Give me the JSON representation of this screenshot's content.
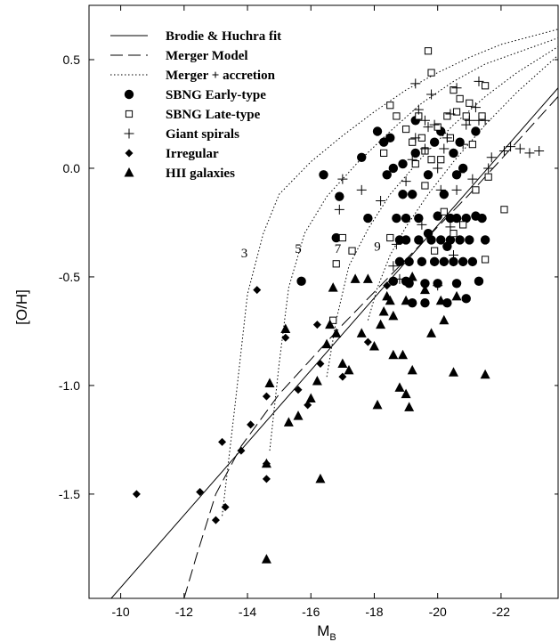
{
  "chart_data": {
    "type": "scatter",
    "xlabel": "M",
    "xlabel_sub": "B",
    "ylabel": "[O/H]",
    "xlim": [
      -9,
      -23.8
    ],
    "ylim": [
      -1.98,
      0.75
    ],
    "x_reversed": true,
    "xticks": [
      -10,
      -12,
      -14,
      -16,
      -18,
      -20,
      -22
    ],
    "yticks": [
      0.5,
      0.0,
      -0.5,
      -1.0,
      -1.5
    ],
    "xtick_labels": [
      "-10",
      "-12",
      "-14",
      "-16",
      "-18",
      "-20",
      "-22"
    ],
    "ytick_labels": [
      "0.5",
      "0.0",
      "-0.5",
      "-1.0",
      "-1.5"
    ],
    "legend_position": "top-left",
    "legend": [
      {
        "label": "Brodie & Huchra fit",
        "style": "solid-line"
      },
      {
        "label": "Merger Model",
        "style": "dashed-line"
      },
      {
        "label": "Merger + accretion",
        "style": "dotted-line"
      },
      {
        "label": "SBNG Early-type",
        "style": "filled-circle"
      },
      {
        "label": "SBNG Late-type",
        "style": "open-square"
      },
      {
        "label": "Giant spirals",
        "style": "plus"
      },
      {
        "label": "Irregular",
        "style": "filled-diamond"
      },
      {
        "label": "HII galaxies",
        "style": "filled-triangle"
      }
    ],
    "curve_labels": [
      {
        "text": "3",
        "x": -13.9,
        "y": -0.41
      },
      {
        "text": "5",
        "x": -15.6,
        "y": -0.39
      },
      {
        "text": "7",
        "x": -16.85,
        "y": -0.39
      },
      {
        "text": "9",
        "x": -18.1,
        "y": -0.38
      }
    ],
    "lines": [
      {
        "name": "Brodie & Huchra fit",
        "style": "solid",
        "points": [
          [
            -9.7,
            -1.98
          ],
          [
            -23.8,
            0.37
          ]
        ]
      },
      {
        "name": "Merger Model",
        "style": "dashed",
        "points": [
          [
            -12.0,
            -1.98
          ],
          [
            -12.4,
            -1.78
          ],
          [
            -13.0,
            -1.5
          ],
          [
            -13.8,
            -1.28
          ],
          [
            -15.0,
            -1.04
          ],
          [
            -17.0,
            -0.72
          ],
          [
            -19.0,
            -0.42
          ],
          [
            -21.0,
            -0.12
          ],
          [
            -23.8,
            0.33
          ]
        ]
      },
      {
        "name": "Merger + accretion 3",
        "style": "dotted",
        "points": [
          [
            -13.2,
            -1.6
          ],
          [
            -13.6,
            -1.1
          ],
          [
            -14.0,
            -0.58
          ],
          [
            -14.5,
            -0.3
          ],
          [
            -15.0,
            -0.12
          ],
          [
            -16.0,
            0.03
          ],
          [
            -17.0,
            0.15
          ],
          [
            -18.0,
            0.26
          ],
          [
            -19.0,
            0.36
          ],
          [
            -20.0,
            0.44
          ],
          [
            -21.0,
            0.51
          ],
          [
            -22.0,
            0.57
          ],
          [
            -23.8,
            0.64
          ]
        ]
      },
      {
        "name": "Merger + accretion 5",
        "style": "dotted",
        "points": [
          [
            -14.7,
            -1.3
          ],
          [
            -15.0,
            -0.9
          ],
          [
            -15.3,
            -0.55
          ],
          [
            -15.8,
            -0.3
          ],
          [
            -16.5,
            -0.13
          ],
          [
            -17.5,
            0.03
          ],
          [
            -18.5,
            0.17
          ],
          [
            -19.5,
            0.3
          ],
          [
            -20.5,
            0.4
          ],
          [
            -21.5,
            0.48
          ],
          [
            -23.8,
            0.6
          ]
        ]
      },
      {
        "name": "Merger + accretion 7",
        "style": "dotted",
        "points": [
          [
            -16.5,
            -0.96
          ],
          [
            -16.8,
            -0.7
          ],
          [
            -17.2,
            -0.45
          ],
          [
            -17.8,
            -0.28
          ],
          [
            -18.5,
            -0.12
          ],
          [
            -19.5,
            0.05
          ],
          [
            -20.5,
            0.2
          ],
          [
            -21.5,
            0.33
          ],
          [
            -22.5,
            0.44
          ],
          [
            -23.8,
            0.56
          ]
        ]
      },
      {
        "name": "Merger + accretion 9",
        "style": "dotted",
        "points": [
          [
            -17.8,
            -0.7
          ],
          [
            -18.1,
            -0.55
          ],
          [
            -18.5,
            -0.4
          ],
          [
            -19.0,
            -0.27
          ],
          [
            -19.7,
            -0.12
          ],
          [
            -20.5,
            0.03
          ],
          [
            -21.5,
            0.2
          ],
          [
            -22.5,
            0.35
          ],
          [
            -23.8,
            0.52
          ]
        ]
      }
    ],
    "series": [
      {
        "name": "SBNG Early-type",
        "marker": "filled-circle",
        "points": [
          [
            -15.7,
            -0.52
          ],
          [
            -16.4,
            -0.03
          ],
          [
            -16.8,
            -0.32
          ],
          [
            -16.9,
            -0.13
          ],
          [
            -17.6,
            0.05
          ],
          [
            -17.8,
            -0.23
          ],
          [
            -18.1,
            0.17
          ],
          [
            -18.3,
            0.12
          ],
          [
            -18.4,
            -0.03
          ],
          [
            -18.5,
            0.14
          ],
          [
            -18.6,
            0.0
          ],
          [
            -18.7,
            -0.23
          ],
          [
            -18.8,
            -0.33
          ],
          [
            -18.8,
            -0.43
          ],
          [
            -18.9,
            -0.12
          ],
          [
            -19.0,
            -0.23
          ],
          [
            -19.0,
            -0.33
          ],
          [
            -19.1,
            -0.43
          ],
          [
            -19.1,
            -0.53
          ],
          [
            -19.2,
            -0.12
          ],
          [
            -19.2,
            -0.62
          ],
          [
            -19.3,
            0.07
          ],
          [
            -19.4,
            -0.23
          ],
          [
            -19.4,
            -0.33
          ],
          [
            -19.5,
            -0.43
          ],
          [
            -19.6,
            -0.53
          ],
          [
            -19.6,
            -0.62
          ],
          [
            -19.7,
            -0.03
          ],
          [
            -19.8,
            -0.33
          ],
          [
            -19.9,
            -0.43
          ],
          [
            -19.9,
            0.12
          ],
          [
            -20.0,
            -0.22
          ],
          [
            -20.0,
            -0.53
          ],
          [
            -20.1,
            0.17
          ],
          [
            -20.1,
            -0.33
          ],
          [
            -20.2,
            -0.43
          ],
          [
            -20.2,
            -0.12
          ],
          [
            -20.3,
            -0.62
          ],
          [
            -20.4,
            -0.23
          ],
          [
            -20.4,
            -0.33
          ],
          [
            -20.5,
            0.07
          ],
          [
            -20.5,
            -0.43
          ],
          [
            -20.6,
            -0.03
          ],
          [
            -20.6,
            -0.23
          ],
          [
            -20.7,
            0.12
          ],
          [
            -20.7,
            -0.33
          ],
          [
            -20.8,
            -0.43
          ],
          [
            -20.9,
            -0.6
          ],
          [
            -20.9,
            -0.23
          ],
          [
            -21.0,
            -0.33
          ],
          [
            -21.1,
            -0.43
          ],
          [
            -21.2,
            -0.22
          ],
          [
            -21.2,
            0.17
          ],
          [
            -21.3,
            -0.52
          ],
          [
            -21.4,
            -0.23
          ],
          [
            -21.5,
            -0.33
          ],
          [
            -19.3,
            0.22
          ],
          [
            -18.9,
            0.02
          ],
          [
            -20.8,
            0.0
          ],
          [
            -19.7,
            -0.3
          ],
          [
            -20.6,
            -0.53
          ],
          [
            -19.0,
            -0.52
          ],
          [
            -18.6,
            -0.52
          ],
          [
            -20.3,
            -0.36
          ]
        ]
      },
      {
        "name": "SBNG Late-type",
        "marker": "open-square",
        "points": [
          [
            -16.7,
            -0.7
          ],
          [
            -16.8,
            -0.44
          ],
          [
            -17.0,
            -0.32
          ],
          [
            -17.3,
            -0.38
          ],
          [
            -18.3,
            0.07
          ],
          [
            -18.5,
            -0.32
          ],
          [
            -18.5,
            0.29
          ],
          [
            -18.7,
            0.24
          ],
          [
            -19.0,
            0.18
          ],
          [
            -19.2,
            0.12
          ],
          [
            -19.3,
            0.02
          ],
          [
            -19.4,
            0.24
          ],
          [
            -19.5,
            0.14
          ],
          [
            -19.6,
            -0.08
          ],
          [
            -19.7,
            0.54
          ],
          [
            -19.8,
            0.44
          ],
          [
            -19.8,
            0.04
          ],
          [
            -20.0,
            0.19
          ],
          [
            -20.1,
            0.04
          ],
          [
            -20.2,
            -0.2
          ],
          [
            -20.3,
            0.24
          ],
          [
            -20.4,
            0.14
          ],
          [
            -20.5,
            0.36
          ],
          [
            -20.5,
            -0.3
          ],
          [
            -20.6,
            0.26
          ],
          [
            -20.7,
            0.32
          ],
          [
            -20.8,
            -0.26
          ],
          [
            -20.9,
            0.24
          ],
          [
            -21.0,
            0.3
          ],
          [
            -21.1,
            0.11
          ],
          [
            -21.2,
            -0.1
          ],
          [
            -21.4,
            0.24
          ],
          [
            -21.5,
            0.38
          ],
          [
            -21.6,
            -0.04
          ],
          [
            -21.5,
            -0.42
          ],
          [
            -22.1,
            -0.19
          ],
          [
            -19.9,
            -0.38
          ],
          [
            -19.6,
            0.08
          ]
        ]
      },
      {
        "name": "Giant spirals",
        "marker": "plus",
        "points": [
          [
            -16.9,
            -0.19
          ],
          [
            -17.0,
            -0.05
          ],
          [
            -17.6,
            -0.1
          ],
          [
            -18.2,
            -0.15
          ],
          [
            -18.6,
            -0.45
          ],
          [
            -18.7,
            -0.35
          ],
          [
            -18.8,
            -0.51
          ],
          [
            -19.0,
            -0.06
          ],
          [
            -19.2,
            0.04
          ],
          [
            -19.3,
            0.14
          ],
          [
            -19.4,
            0.27
          ],
          [
            -19.5,
            -0.26
          ],
          [
            -19.6,
            0.09
          ],
          [
            -19.7,
            0.19
          ],
          [
            -19.8,
            0.34
          ],
          [
            -19.9,
            0.2
          ],
          [
            -20.0,
            0.0
          ],
          [
            -20.1,
            -0.1
          ],
          [
            -20.2,
            0.09
          ],
          [
            -20.3,
            0.14
          ],
          [
            -20.4,
            0.25
          ],
          [
            -20.4,
            -0.27
          ],
          [
            -20.5,
            -0.4
          ],
          [
            -20.6,
            -0.1
          ],
          [
            -20.7,
            -0.02
          ],
          [
            -20.8,
            0.11
          ],
          [
            -20.9,
            0.2
          ],
          [
            -21.0,
            0.22
          ],
          [
            -21.1,
            -0.05
          ],
          [
            -21.2,
            0.28
          ],
          [
            -21.3,
            0.22
          ],
          [
            -21.5,
            0.22
          ],
          [
            -21.6,
            0.0
          ],
          [
            -21.7,
            0.05
          ],
          [
            -22.1,
            0.08
          ],
          [
            -22.3,
            0.1
          ],
          [
            -22.6,
            0.09
          ],
          [
            -22.9,
            0.07
          ],
          [
            -23.2,
            0.08
          ],
          [
            -19.3,
            0.39
          ],
          [
            -20.6,
            0.37
          ],
          [
            -20.0,
            -0.54
          ],
          [
            -21.3,
            0.4
          ],
          [
            -19.6,
            0.22
          ]
        ]
      },
      {
        "name": "Irregular",
        "marker": "filled-diamond",
        "points": [
          [
            -10.5,
            -1.5
          ],
          [
            -12.5,
            -1.49
          ],
          [
            -13.0,
            -1.62
          ],
          [
            -13.2,
            -1.26
          ],
          [
            -13.3,
            -1.56
          ],
          [
            -13.8,
            -1.3
          ],
          [
            -14.1,
            -1.18
          ],
          [
            -14.3,
            -0.56
          ],
          [
            -14.6,
            -1.05
          ],
          [
            -14.6,
            -1.36
          ],
          [
            -14.6,
            -1.43
          ],
          [
            -15.2,
            -0.78
          ],
          [
            -15.6,
            -1.02
          ],
          [
            -15.9,
            -1.09
          ],
          [
            -16.2,
            -0.72
          ],
          [
            -16.3,
            -0.9
          ],
          [
            -17.0,
            -0.96
          ],
          [
            -17.8,
            -0.8
          ],
          [
            -18.4,
            -0.54
          ]
        ]
      },
      {
        "name": "HII galaxies",
        "marker": "filled-triangle",
        "points": [
          [
            -14.6,
            -1.8
          ],
          [
            -14.6,
            -1.36
          ],
          [
            -14.7,
            -0.99
          ],
          [
            -15.2,
            -0.74
          ],
          [
            -15.3,
            -1.17
          ],
          [
            -15.6,
            -1.14
          ],
          [
            -16.0,
            -1.06
          ],
          [
            -16.2,
            -0.98
          ],
          [
            -16.3,
            -1.43
          ],
          [
            -16.6,
            -0.72
          ],
          [
            -16.7,
            -0.55
          ],
          [
            -16.8,
            -0.76
          ],
          [
            -17.0,
            -0.9
          ],
          [
            -17.2,
            -0.93
          ],
          [
            -17.4,
            -0.51
          ],
          [
            -17.6,
            -0.76
          ],
          [
            -17.8,
            -0.51
          ],
          [
            -18.0,
            -0.82
          ],
          [
            -18.1,
            -1.09
          ],
          [
            -18.2,
            -0.72
          ],
          [
            -18.4,
            -0.59
          ],
          [
            -18.6,
            -0.68
          ],
          [
            -18.6,
            -0.86
          ],
          [
            -18.8,
            -1.01
          ],
          [
            -18.9,
            -0.86
          ],
          [
            -19.0,
            -0.61
          ],
          [
            -19.0,
            -1.04
          ],
          [
            -19.1,
            -1.1
          ],
          [
            -19.2,
            -0.93
          ],
          [
            -19.2,
            -0.5
          ],
          [
            -19.8,
            -0.76
          ],
          [
            -20.2,
            -0.7
          ],
          [
            -20.5,
            -0.94
          ],
          [
            -20.6,
            -0.59
          ],
          [
            -21.5,
            -0.95
          ],
          [
            -19.6,
            -0.56
          ],
          [
            -18.3,
            -0.66
          ],
          [
            -18.5,
            -0.61
          ],
          [
            -20.1,
            -0.61
          ],
          [
            -16.5,
            -0.81
          ]
        ]
      }
    ]
  }
}
